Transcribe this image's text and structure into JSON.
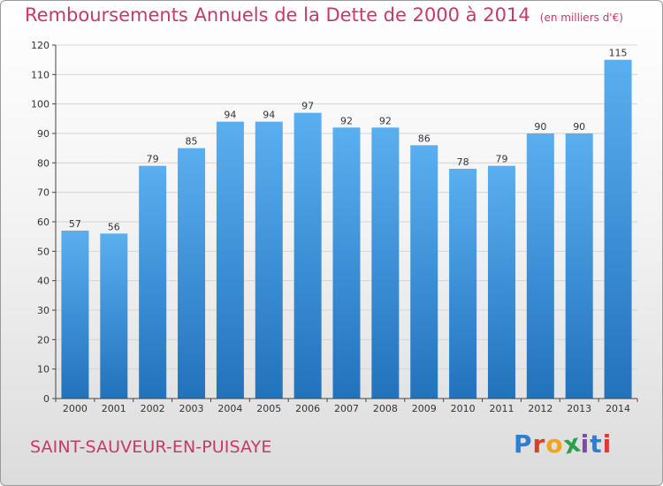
{
  "title": "Remboursements Annuels de la Dette de 2000 à 2014",
  "unit": "(en milliers d'€)",
  "commune": "SAINT-SAUVEUR-EN-PUISAYE",
  "logo": {
    "text": "Proxiti",
    "colors": [
      "#2e7fd0",
      "#e23b2e",
      "#f2a517",
      "#2aa14a",
      "#7a49b8",
      "#2e7fd0",
      "#e23b2e"
    ]
  },
  "colors": {
    "bar_top": "#5aaff0",
    "bar_bottom": "#2272bc",
    "grid": "#d4d4d4",
    "axis": "#444444",
    "label": "#333333"
  },
  "chart_data": {
    "type": "bar",
    "categories": [
      "2000",
      "2001",
      "2002",
      "2003",
      "2004",
      "2005",
      "2006",
      "2007",
      "2008",
      "2009",
      "2010",
      "2011",
      "2012",
      "2013",
      "2014"
    ],
    "values": [
      57,
      56,
      79,
      85,
      94,
      94,
      97,
      92,
      92,
      86,
      78,
      79,
      90,
      90,
      115
    ],
    "ylim": [
      0,
      120
    ],
    "yticks": [
      0,
      10,
      20,
      30,
      40,
      50,
      60,
      70,
      80,
      90,
      100,
      110,
      120
    ],
    "grid": true,
    "data_labels": true
  }
}
